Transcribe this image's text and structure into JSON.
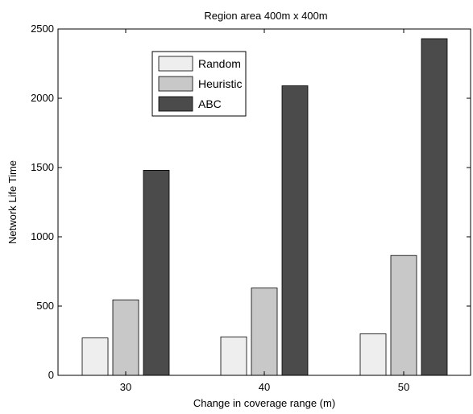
{
  "chart_data": {
    "type": "bar",
    "title": "Region area 400m x 400m",
    "xlabel": "Change in coverage range (m)",
    "ylabel": "Network Life Time",
    "categories": [
      "30",
      "40",
      "50"
    ],
    "series": [
      {
        "name": "Random",
        "values": [
          270,
          278,
          300
        ],
        "color": "#eeeeee"
      },
      {
        "name": "Heuristic",
        "values": [
          545,
          630,
          865
        ],
        "color": "#c8c8c8"
      },
      {
        "name": "ABC",
        "values": [
          1480,
          2090,
          2430
        ],
        "color": "#4b4b4b"
      }
    ],
    "ylim": [
      0,
      2500
    ],
    "yticks": [
      "0",
      "500",
      "1000",
      "1500",
      "2000",
      "2500"
    ],
    "grid": false,
    "legend_position": "top-left"
  }
}
